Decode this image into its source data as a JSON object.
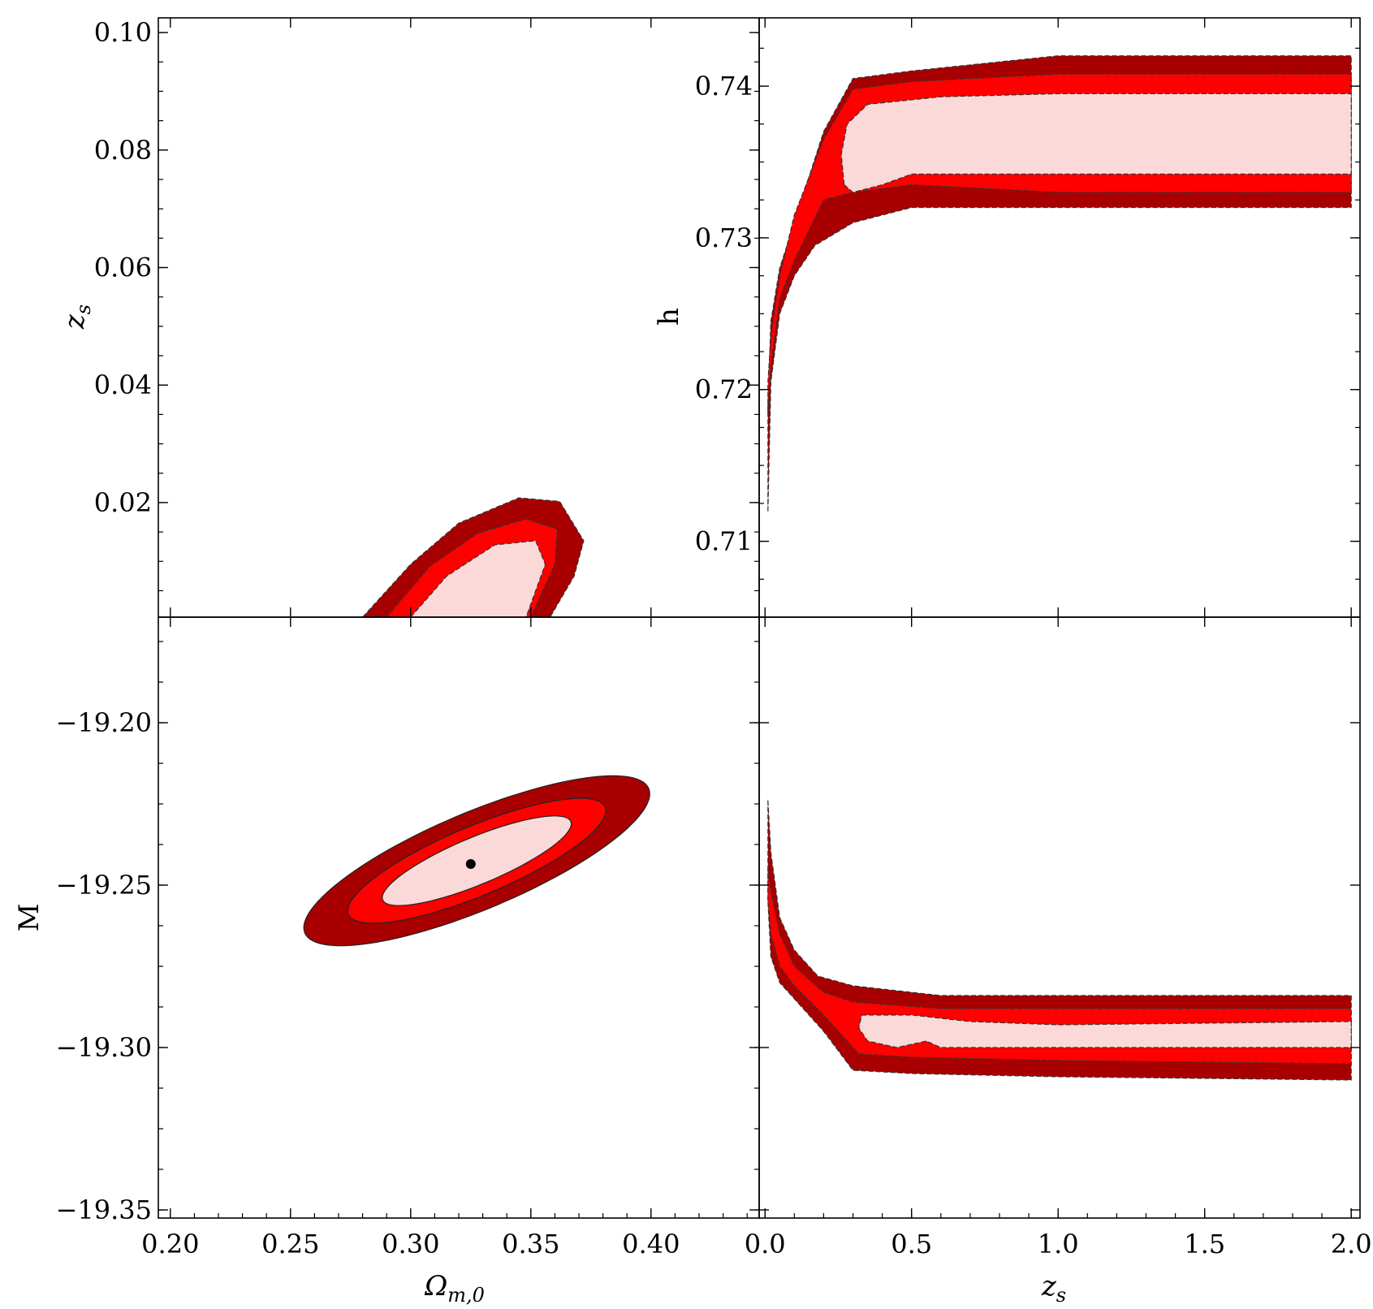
{
  "colors": {
    "sigma1": "#fbd9d9",
    "sigma2": "#ff0000",
    "sigma3": "#a80000",
    "frame": "#000000",
    "best_fit": "#000000"
  },
  "chart_data": [
    {
      "id": "omega-zs",
      "type": "contour",
      "xlabel": "",
      "ylabel": "z",
      "ylabel_sub": "s",
      "xlim": [
        0.195,
        0.445
      ],
      "ylim": [
        0.0005,
        0.1025
      ],
      "yticks": [
        0.02,
        0.04,
        0.06,
        0.08,
        0.1
      ],
      "yticklabels": [
        "0.02",
        "0.04",
        "0.06",
        "0.08",
        "0.10"
      ],
      "contours": [
        {
          "level": "3sigma",
          "points": [
            [
              0.28,
              0.0005
            ],
            [
              0.3,
              0.0095
            ],
            [
              0.32,
              0.0165
            ],
            [
              0.345,
              0.0208
            ],
            [
              0.362,
              0.0202
            ],
            [
              0.372,
              0.0135
            ],
            [
              0.368,
              0.0075
            ],
            [
              0.358,
              0.0005
            ]
          ]
        },
        {
          "level": "2sigma",
          "points": [
            [
              0.29,
              0.0005
            ],
            [
              0.308,
              0.0092
            ],
            [
              0.328,
              0.0148
            ],
            [
              0.348,
              0.0172
            ],
            [
              0.361,
              0.0155
            ],
            [
              0.36,
              0.0095
            ],
            [
              0.35,
              0.0005
            ]
          ]
        },
        {
          "level": "1sigma",
          "points": [
            [
              0.3,
              0.0005
            ],
            [
              0.315,
              0.0075
            ],
            [
              0.335,
              0.0128
            ],
            [
              0.352,
              0.0135
            ],
            [
              0.356,
              0.0095
            ],
            [
              0.348,
              0.0005
            ]
          ]
        }
      ]
    },
    {
      "id": "zs-h",
      "type": "contour",
      "xlabel": "",
      "ylabel": "h",
      "xlim": [
        -0.02,
        2.03
      ],
      "ylim": [
        0.705,
        0.7445
      ],
      "yticks": [
        0.71,
        0.72,
        0.73,
        0.74
      ],
      "yticklabels": [
        "0.71",
        "0.72",
        "0.73",
        "0.74"
      ],
      "contours": [
        {
          "level": "3sigma",
          "points": [
            [
              0.01,
              0.712
            ],
            [
              0.02,
              0.7205
            ],
            [
              0.05,
              0.725
            ],
            [
              0.1,
              0.7275
            ],
            [
              0.17,
              0.7295
            ],
            [
              0.3,
              0.731
            ],
            [
              0.5,
              0.732
            ],
            [
              1.0,
              0.732
            ],
            [
              2.0,
              0.732
            ],
            [
              2.0,
              0.742
            ],
            [
              1.0,
              0.742
            ],
            [
              0.5,
              0.741
            ],
            [
              0.3,
              0.7405
            ],
            [
              0.2,
              0.737
            ],
            [
              0.1,
              0.731
            ],
            [
              0.05,
              0.728
            ],
            [
              0.02,
              0.7245
            ],
            [
              0.01,
              0.719
            ]
          ]
        },
        {
          "level": "2sigma",
          "points": [
            [
              0.01,
              0.7185
            ],
            [
              0.02,
              0.7215
            ],
            [
              0.05,
              0.726
            ],
            [
              0.1,
              0.7285
            ],
            [
              0.2,
              0.7325
            ],
            [
              0.3,
              0.733
            ],
            [
              0.5,
              0.7335
            ],
            [
              1.0,
              0.733
            ],
            [
              2.0,
              0.733
            ],
            [
              2.0,
              0.7408
            ],
            [
              1.0,
              0.7408
            ],
            [
              0.5,
              0.7403
            ],
            [
              0.3,
              0.7398
            ],
            [
              0.2,
              0.7365
            ],
            [
              0.1,
              0.7315
            ],
            [
              0.05,
              0.7275
            ],
            [
              0.02,
              0.7235
            ],
            [
              0.01,
              0.7205
            ]
          ]
        },
        {
          "level": "1sigma",
          "points": [
            [
              0.27,
              0.7335
            ],
            [
              0.3,
              0.733
            ],
            [
              0.4,
              0.7335
            ],
            [
              0.5,
              0.7342
            ],
            [
              1.0,
              0.7342
            ],
            [
              2.0,
              0.7342
            ],
            [
              2.0,
              0.7395
            ],
            [
              1.0,
              0.7395
            ],
            [
              0.6,
              0.7393
            ],
            [
              0.35,
              0.7388
            ],
            [
              0.28,
              0.7375
            ],
            [
              0.26,
              0.7355
            ]
          ]
        }
      ]
    },
    {
      "id": "omega-M",
      "type": "contour",
      "xlabel": "Ω",
      "xlabel_sub": "m,0",
      "ylabel": "M",
      "xlim": [
        0.195,
        0.445
      ],
      "ylim": [
        -19.3525,
        -19.1675
      ],
      "xticks": [
        0.2,
        0.25,
        0.3,
        0.35,
        0.4
      ],
      "xticklabels": [
        "0.20",
        "0.25",
        "0.30",
        "0.35",
        "0.40"
      ],
      "yticks": [
        -19.35,
        -19.3,
        -19.25,
        -19.2
      ],
      "yticklabels": [
        "−19.35",
        "−19.30",
        "−19.25",
        "−19.20"
      ],
      "best_fit": {
        "x": 0.325,
        "y": -19.2435
      },
      "ellipses": [
        {
          "level": "3sigma",
          "center": [
            0.3275,
            -19.2425
          ],
          "semi_major": 0.075,
          "semi_minor": 0.0155,
          "slope": 0.3
        },
        {
          "level": "2sigma",
          "center": [
            0.3275,
            -19.2425
          ],
          "semi_major": 0.056,
          "semi_minor": 0.011,
          "slope": 0.3
        },
        {
          "level": "1sigma",
          "center": [
            0.3275,
            -19.2425
          ],
          "semi_major": 0.041,
          "semi_minor": 0.0075,
          "slope": 0.3
        }
      ]
    },
    {
      "id": "zs-M",
      "type": "contour",
      "xlabel": "z",
      "xlabel_sub": "s",
      "ylabel": "",
      "xlim": [
        -0.02,
        2.03
      ],
      "ylim": [
        -19.3525,
        -19.1675
      ],
      "xticks": [
        0.0,
        0.5,
        1.0,
        1.5,
        2.0
      ],
      "xticklabels": [
        "0.0",
        "0.5",
        "1.0",
        "1.5",
        "2.0"
      ],
      "contours": [
        {
          "level": "3sigma",
          "points": [
            [
              0.01,
              -19.224
            ],
            [
              0.02,
              -19.24
            ],
            [
              0.05,
              -19.26
            ],
            [
              0.1,
              -19.27
            ],
            [
              0.18,
              -19.278
            ],
            [
              0.3,
              -19.281
            ],
            [
              0.6,
              -19.284
            ],
            [
              1.0,
              -19.284
            ],
            [
              2.0,
              -19.284
            ],
            [
              2.0,
              -19.31
            ],
            [
              1.0,
              -19.309
            ],
            [
              0.5,
              -19.308
            ],
            [
              0.3,
              -19.307
            ],
            [
              0.2,
              -19.295
            ],
            [
              0.1,
              -19.285
            ],
            [
              0.05,
              -19.28
            ],
            [
              0.02,
              -19.272
            ],
            [
              0.01,
              -19.255
            ]
          ]
        },
        {
          "level": "2sigma",
          "points": [
            [
              0.01,
              -19.245
            ],
            [
              0.02,
              -19.252
            ],
            [
              0.05,
              -19.265
            ],
            [
              0.1,
              -19.275
            ],
            [
              0.2,
              -19.283
            ],
            [
              0.3,
              -19.286
            ],
            [
              0.6,
              -19.288
            ],
            [
              1.0,
              -19.288
            ],
            [
              2.0,
              -19.288
            ],
            [
              2.0,
              -19.305
            ],
            [
              1.0,
              -19.304
            ],
            [
              0.5,
              -19.303
            ],
            [
              0.32,
              -19.302
            ],
            [
              0.2,
              -19.29
            ],
            [
              0.1,
              -19.281
            ],
            [
              0.05,
              -19.275
            ],
            [
              0.02,
              -19.265
            ],
            [
              0.01,
              -19.255
            ]
          ]
        },
        {
          "level": "1sigma",
          "points": [
            [
              0.33,
              -19.29
            ],
            [
              0.5,
              -19.29
            ],
            [
              0.7,
              -19.292
            ],
            [
              1.0,
              -19.293
            ],
            [
              2.0,
              -19.292
            ],
            [
              2.0,
              -19.3
            ],
            [
              1.0,
              -19.3
            ],
            [
              0.6,
              -19.3
            ],
            [
              0.55,
              -19.298
            ],
            [
              0.45,
              -19.3
            ],
            [
              0.35,
              -19.298
            ],
            [
              0.32,
              -19.294
            ]
          ]
        }
      ]
    }
  ]
}
